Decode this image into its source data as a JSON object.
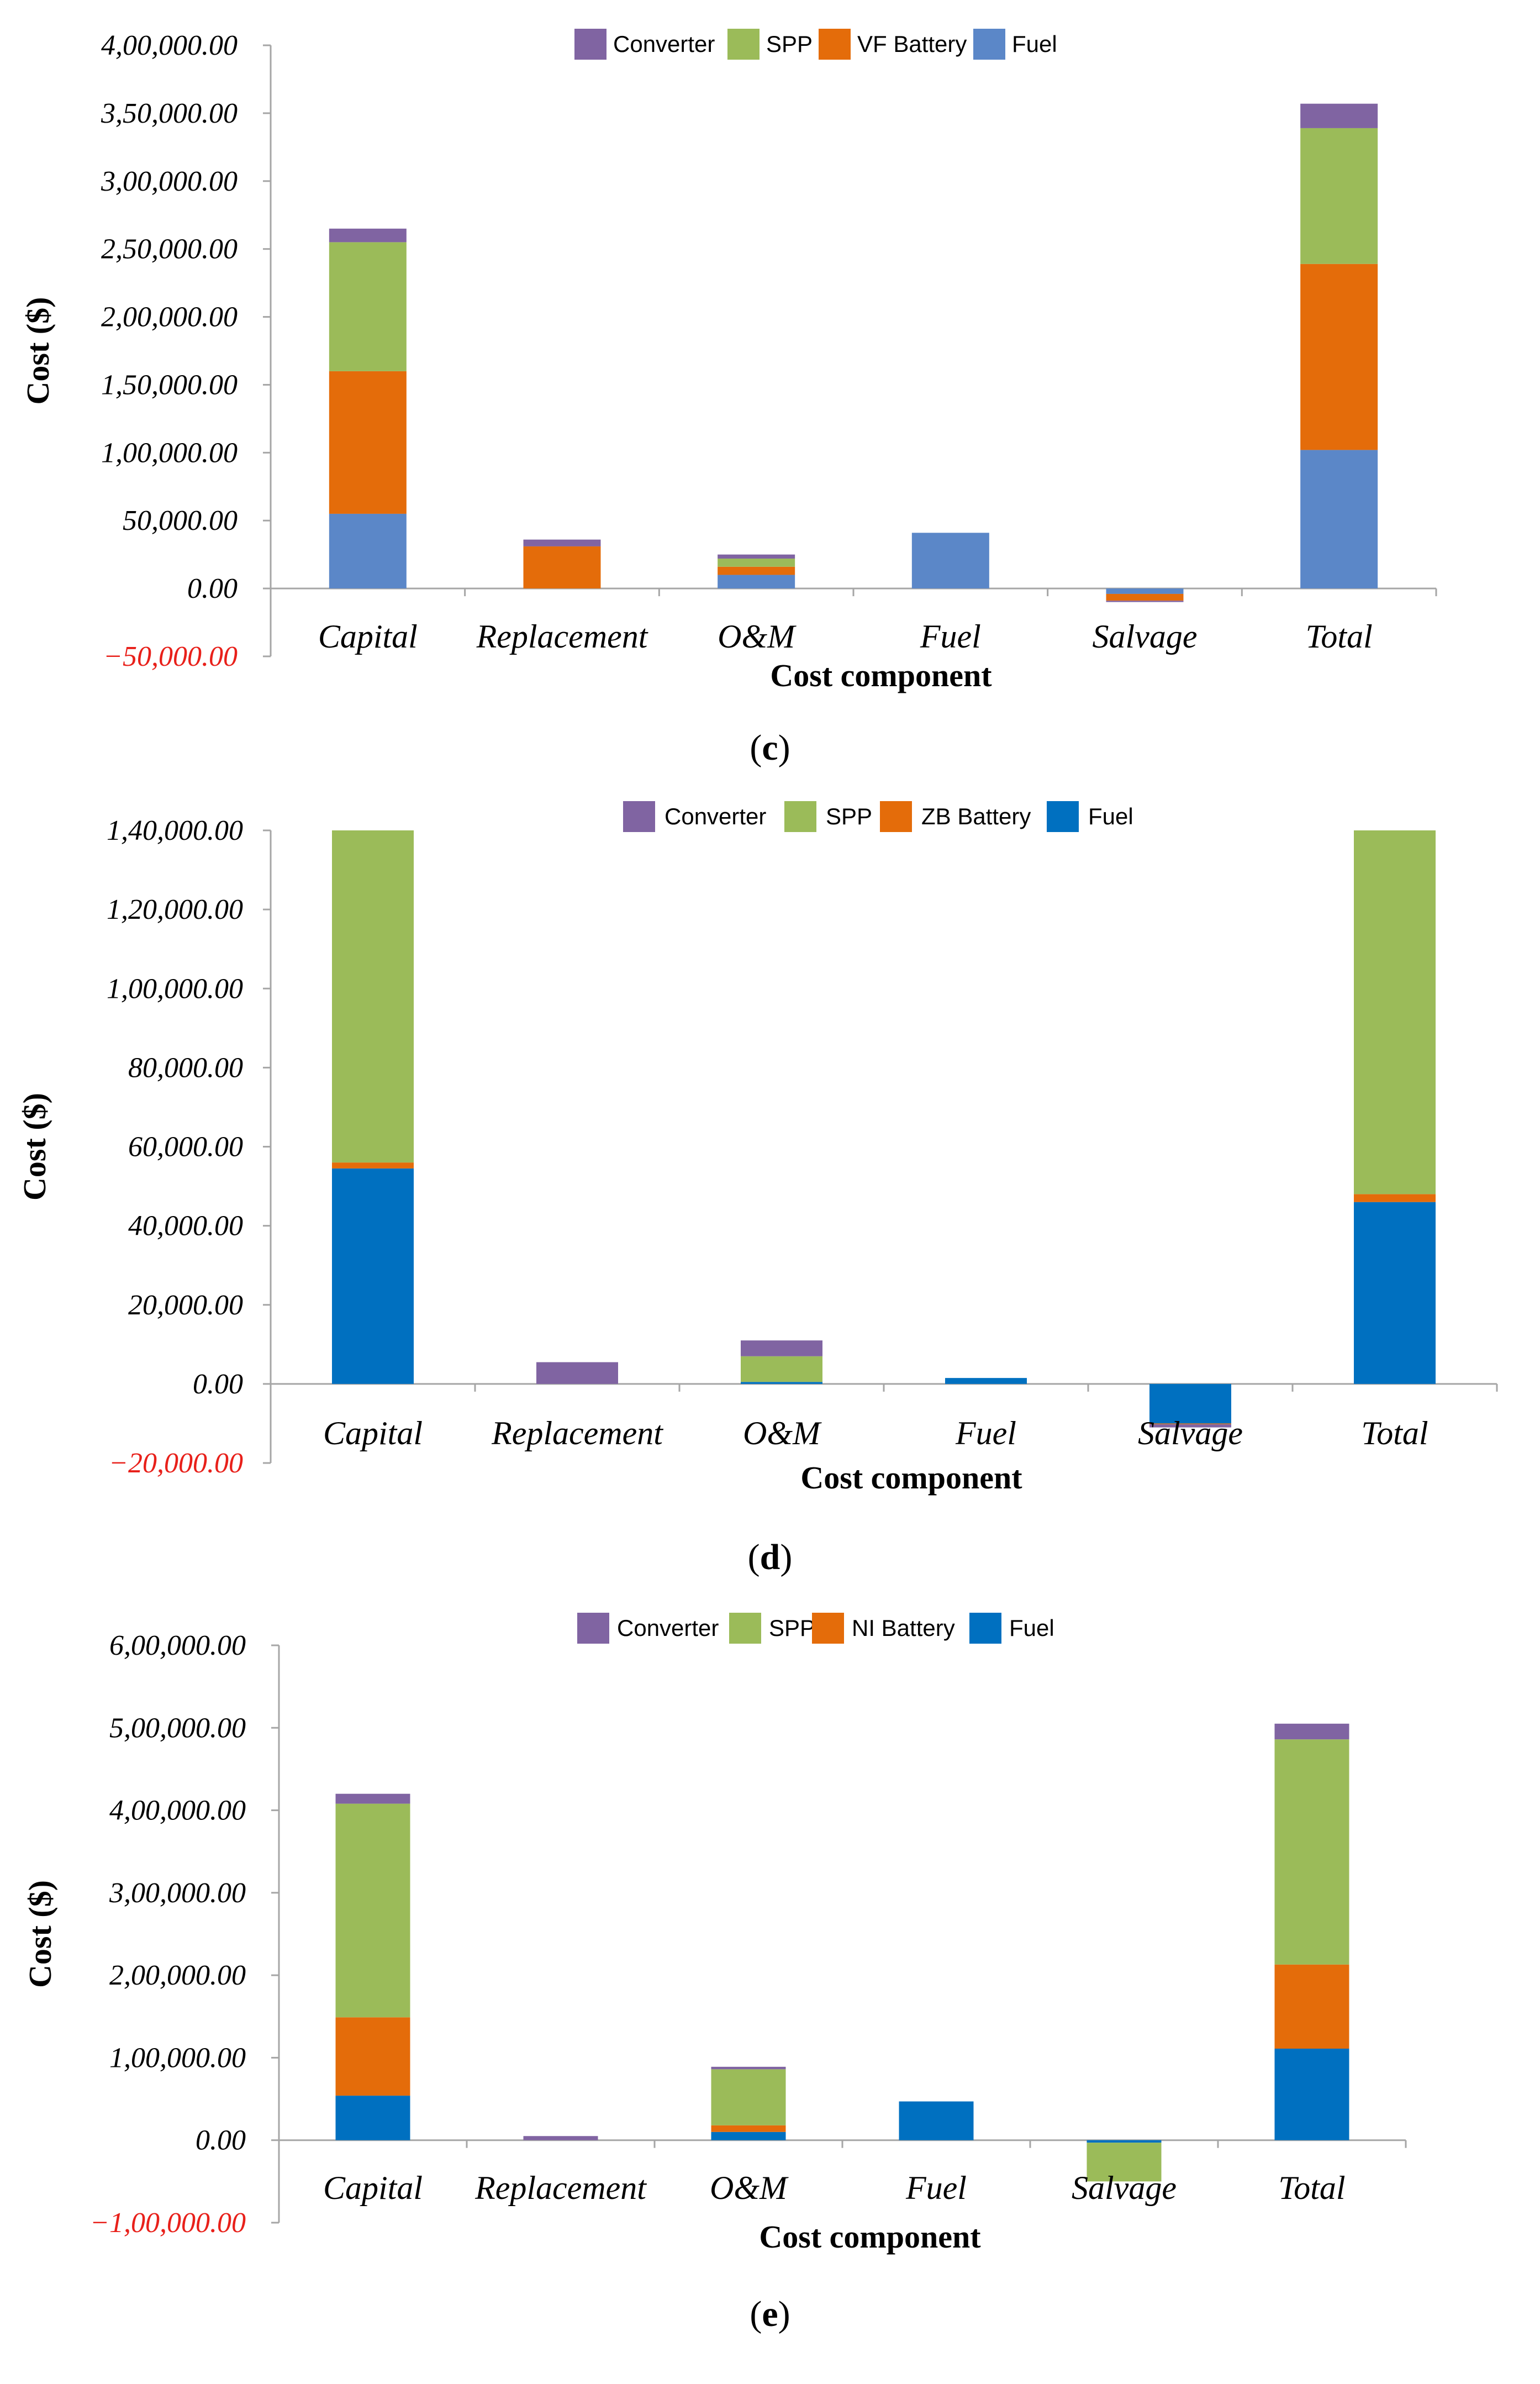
{
  "chart_data": [
    {
      "type": "bar",
      "stacked": true,
      "panel": "c",
      "title": "",
      "xlabel": "Cost component",
      "ylabel": "Cost ($)",
      "ylim": [
        -50000,
        400000
      ],
      "yticks": [
        -50000,
        0,
        50000,
        100000,
        150000,
        200000,
        250000,
        300000,
        350000,
        400000
      ],
      "ytick_labels": [
        "−50,000.00",
        "0.00",
        "50,000.00",
        "1,00,000.00",
        "1,50,000.00",
        "2,00,000.00",
        "2,50,000.00",
        "3,00,000.00",
        "3,50,000.00",
        "4,00,000.00"
      ],
      "categories": [
        "Capital",
        "Replacement",
        "O&M",
        "Fuel",
        "Salvage",
        "Total"
      ],
      "legend": [
        "Converter",
        "SPP",
        "VF Battery",
        "Fuel"
      ],
      "series": [
        {
          "name": "Fuel",
          "color": "#5b87c8",
          "values": [
            55000,
            0,
            10000,
            41000,
            -4000,
            102000
          ]
        },
        {
          "name": "VF Battery",
          "color": "#e46c0a",
          "values": [
            105000,
            31000,
            6000,
            0,
            -5000,
            137000
          ]
        },
        {
          "name": "SPP",
          "color": "#9bbb59",
          "values": [
            95000,
            0,
            6000,
            0,
            0,
            100000
          ]
        },
        {
          "name": "Converter",
          "color": "#8064a2",
          "values": [
            10000,
            5000,
            3000,
            0,
            -1000,
            18000
          ]
        }
      ]
    },
    {
      "type": "bar",
      "stacked": true,
      "panel": "d",
      "title": "",
      "xlabel": "Cost component",
      "ylabel": "Cost ($)",
      "ylim": [
        -20000,
        140000
      ],
      "yticks": [
        -20000,
        0,
        20000,
        40000,
        60000,
        80000,
        100000,
        120000,
        140000
      ],
      "ytick_labels": [
        "−20,000.00",
        "0.00",
        "20,000.00",
        "40,000.00",
        "60,000.00",
        "80,000.00",
        "1,00,000.00",
        "1,20,000.00",
        "1,40,000.00"
      ],
      "categories": [
        "Capital",
        "Replacement",
        "O&M",
        "Fuel",
        "Salvage",
        "Total"
      ],
      "legend": [
        "Converter",
        "SPP",
        "ZB Battery",
        "Fuel"
      ],
      "series": [
        {
          "name": "Fuel",
          "color": "#0070c0",
          "values": [
            54500,
            0,
            500,
            1500,
            -10000,
            46000
          ]
        },
        {
          "name": "ZB Battery",
          "color": "#e46c0a",
          "values": [
            1500,
            0,
            0,
            0,
            -200,
            2000
          ]
        },
        {
          "name": "SPP",
          "color": "#9bbb59",
          "values": [
            84000,
            0,
            6500,
            0,
            0,
            92000
          ]
        },
        {
          "name": "Converter",
          "color": "#8064a2",
          "values": [
            0,
            5500,
            4000,
            0,
            -800,
            0
          ]
        }
      ]
    },
    {
      "type": "bar",
      "stacked": true,
      "panel": "e",
      "title": "",
      "xlabel": "Cost component",
      "ylabel": "Cost ($)",
      "ylim": [
        -100000,
        600000
      ],
      "yticks": [
        -100000,
        0,
        100000,
        200000,
        300000,
        400000,
        500000,
        600000
      ],
      "ytick_labels": [
        "−1,00,000.00",
        "0.00",
        "1,00,000.00",
        "2,00,000.00",
        "3,00,000.00",
        "4,00,000.00",
        "5,00,000.00",
        "6,00,000.00"
      ],
      "categories": [
        "Capital",
        "Replacement",
        "O&M",
        "Fuel",
        "Salvage",
        "Total"
      ],
      "legend": [
        "Converter",
        "SPP",
        "NI Battery",
        "Fuel"
      ],
      "series": [
        {
          "name": "Fuel",
          "color": "#0070c0",
          "values": [
            54000,
            0,
            10000,
            47000,
            -3000,
            111000
          ]
        },
        {
          "name": "NI Battery",
          "color": "#e46c0a",
          "values": [
            95000,
            0,
            8000,
            0,
            0,
            102000
          ]
        },
        {
          "name": "SPP",
          "color": "#9bbb59",
          "values": [
            259000,
            0,
            68000,
            0,
            -47000,
            273000
          ]
        },
        {
          "name": "Converter",
          "color": "#8064a2",
          "values": [
            12000,
            5000,
            3000,
            0,
            0,
            19000
          ]
        }
      ]
    }
  ],
  "captions": [
    {
      "open": "(",
      "letter": "c",
      "close": ")"
    },
    {
      "open": "(",
      "letter": "d",
      "close": ")"
    },
    {
      "open": "(",
      "letter": "e",
      "close": ")"
    }
  ]
}
